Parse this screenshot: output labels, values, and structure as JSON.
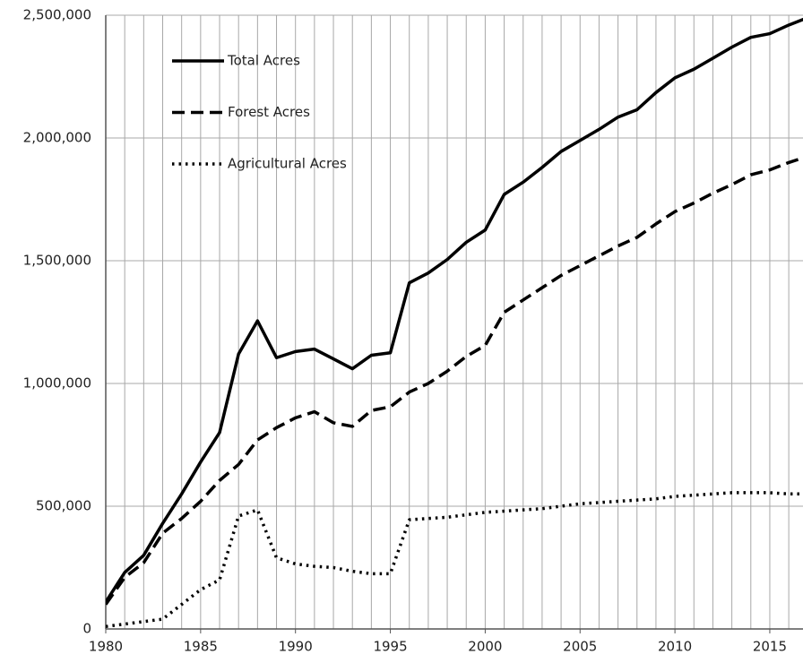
{
  "chart_data": {
    "type": "line",
    "x": [
      1980,
      1981,
      1982,
      1983,
      1984,
      1985,
      1986,
      1987,
      1988,
      1989,
      1990,
      1991,
      1992,
      1993,
      1994,
      1995,
      1996,
      1997,
      1998,
      1999,
      2000,
      2001,
      2002,
      2003,
      2004,
      2005,
      2006,
      2007,
      2008,
      2009,
      2010,
      2011,
      2012,
      2013,
      2014,
      2015,
      2016,
      2017
    ],
    "series": [
      {
        "name": "Total Acres",
        "color": "#000000",
        "style": "solid",
        "values": [
          110000,
          230000,
          300000,
          430000,
          550000,
          680000,
          800000,
          1120000,
          1255000,
          1105000,
          1130000,
          1140000,
          1100000,
          1060000,
          1115000,
          1125000,
          1410000,
          1450000,
          1505000,
          1575000,
          1625000,
          1770000,
          1820000,
          1880000,
          1945000,
          1990000,
          2035000,
          2085000,
          2115000,
          2185000,
          2245000,
          2280000,
          2325000,
          2370000,
          2410000,
          2425000,
          2460000,
          2490000
        ]
      },
      {
        "name": "Forest Acres",
        "color": "#000000",
        "style": "dashed",
        "values": [
          100000,
          210000,
          270000,
          390000,
          450000,
          520000,
          605000,
          670000,
          770000,
          820000,
          860000,
          885000,
          840000,
          825000,
          890000,
          905000,
          965000,
          1000000,
          1050000,
          1110000,
          1155000,
          1290000,
          1340000,
          1390000,
          1440000,
          1480000,
          1520000,
          1560000,
          1595000,
          1650000,
          1700000,
          1735000,
          1775000,
          1810000,
          1850000,
          1870000,
          1900000,
          1925000
        ]
      },
      {
        "name": "Agricultural Acres",
        "color": "#000000",
        "style": "dotted",
        "values": [
          10000,
          20000,
          30000,
          40000,
          100000,
          160000,
          200000,
          460000,
          485000,
          290000,
          265000,
          255000,
          250000,
          235000,
          225000,
          225000,
          445000,
          450000,
          455000,
          465000,
          475000,
          480000,
          485000,
          490000,
          500000,
          510000,
          515000,
          520000,
          525000,
          530000,
          540000,
          545000,
          550000,
          555000,
          555000,
          555000,
          550000,
          550000
        ]
      }
    ],
    "xlim": [
      1980,
      2016.75
    ],
    "xticks": [
      1980,
      1985,
      1990,
      1995,
      2000,
      2005,
      2010,
      2015
    ],
    "ylim": [
      0,
      2500000
    ],
    "yticks": [
      0,
      {
        "value": 500000,
        "label": "500,000"
      },
      {
        "value": 1000000,
        "label": "1,000,000"
      },
      {
        "value": 1500000,
        "label": "1,500,000"
      },
      {
        "value": 2000000,
        "label": "2,000,000"
      },
      {
        "value": 2500000,
        "label": "2,500,000"
      }
    ],
    "grid": true,
    "legend": "upper left"
  }
}
